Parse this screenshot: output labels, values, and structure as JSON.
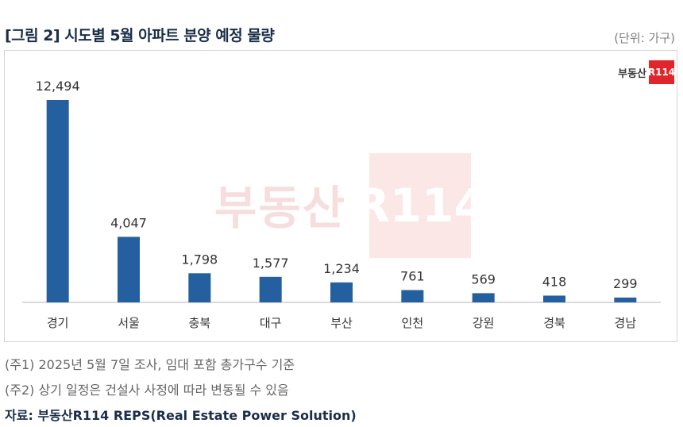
{
  "header": {
    "title": "[그림 2] 시도별 5월 아파트 분양 예정 물량",
    "unit": "(단위: 가구)"
  },
  "logo": {
    "text": "부동산",
    "box": "R114"
  },
  "watermark": {
    "text": "부동산",
    "box": "R114"
  },
  "chart_data": {
    "type": "bar",
    "categories": [
      "경기",
      "서울",
      "충북",
      "대구",
      "부산",
      "인천",
      "강원",
      "경북",
      "경남"
    ],
    "values": [
      12494,
      4047,
      1798,
      1577,
      1234,
      761,
      569,
      418,
      299
    ],
    "value_labels": [
      "12,494",
      "4,047",
      "1,798",
      "1,577",
      "1,234",
      "761",
      "569",
      "418",
      "299"
    ],
    "title": "",
    "xlabel": "",
    "ylabel": "",
    "ylim": [
      0,
      13000
    ],
    "grid": false,
    "legend": "none",
    "bar_color": "#245f9f"
  },
  "notes": [
    "(주1) 2025년 5월 7일 조사, 임대 포함 총가구수 기준",
    "(주2) 상기 일정은 건설사 사정에 따라 변동될 수 있음"
  ],
  "source": "자료: 부동산R114 REPS(Real Estate Power Solution)"
}
